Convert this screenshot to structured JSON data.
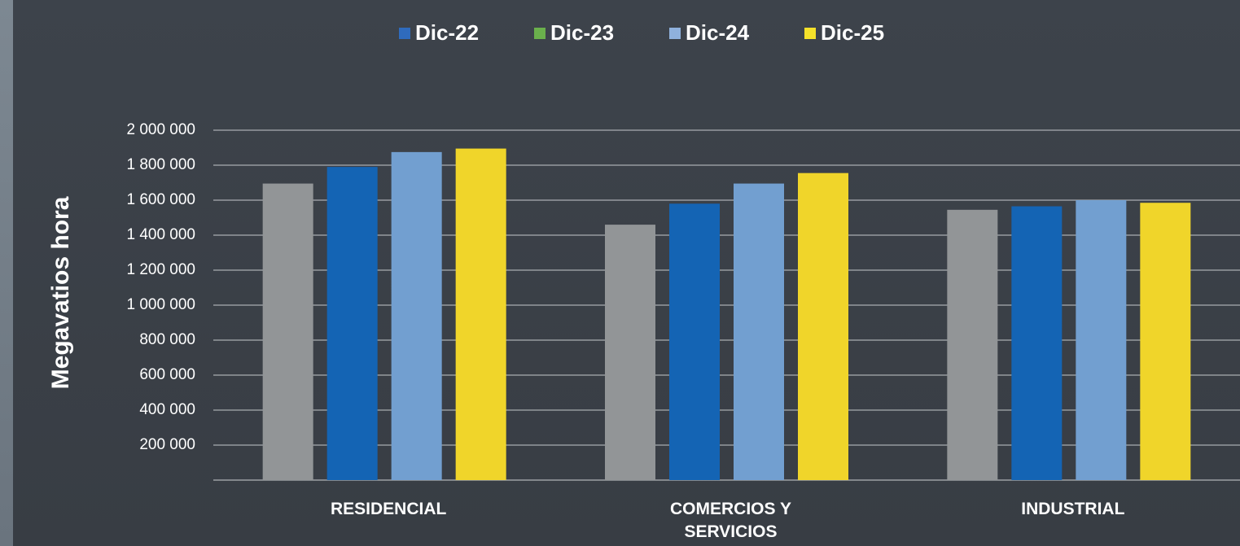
{
  "chart_data": {
    "type": "bar",
    "y_label": "Megavatios hora",
    "categories": [
      "RESIDENCIAL",
      "COMERCIOS Y SERVICIOS",
      "INDUSTRIAL"
    ],
    "series": [
      {
        "name": "Dic-22",
        "color": "#929597",
        "legend_color": "#2f6bbd",
        "values": [
          1695000,
          1460000,
          1545000
        ]
      },
      {
        "name": "Dic-23",
        "color": "#1464b4",
        "legend_color": "#6ab04c",
        "values": [
          1790000,
          1580000,
          1565000
        ]
      },
      {
        "name": "Dic-24",
        "color": "#729fd0",
        "legend_color": "#8fb1dd",
        "values": [
          1875000,
          1695000,
          1600000
        ]
      },
      {
        "name": "Dic-25",
        "color": "#f0d52a",
        "legend_color": "#f5e12a",
        "values": [
          1895000,
          1755000,
          1585000
        ]
      }
    ],
    "ylim": [
      0,
      2000000
    ],
    "yticks": [
      {
        "value": 200000,
        "label": "200 000"
      },
      {
        "value": 400000,
        "label": "400 000"
      },
      {
        "value": 600000,
        "label": "600 000"
      },
      {
        "value": 800000,
        "label": "800 000"
      },
      {
        "value": 1000000,
        "label": "1 000 000"
      },
      {
        "value": 1200000,
        "label": "1 200 000"
      },
      {
        "value": 1400000,
        "label": "1 400 000"
      },
      {
        "value": 1600000,
        "label": "1 600 000"
      },
      {
        "value": 1800000,
        "label": "1 800 000"
      },
      {
        "value": 2000000,
        "label": "2 000 000"
      }
    ],
    "grid": true,
    "legend": "top"
  }
}
